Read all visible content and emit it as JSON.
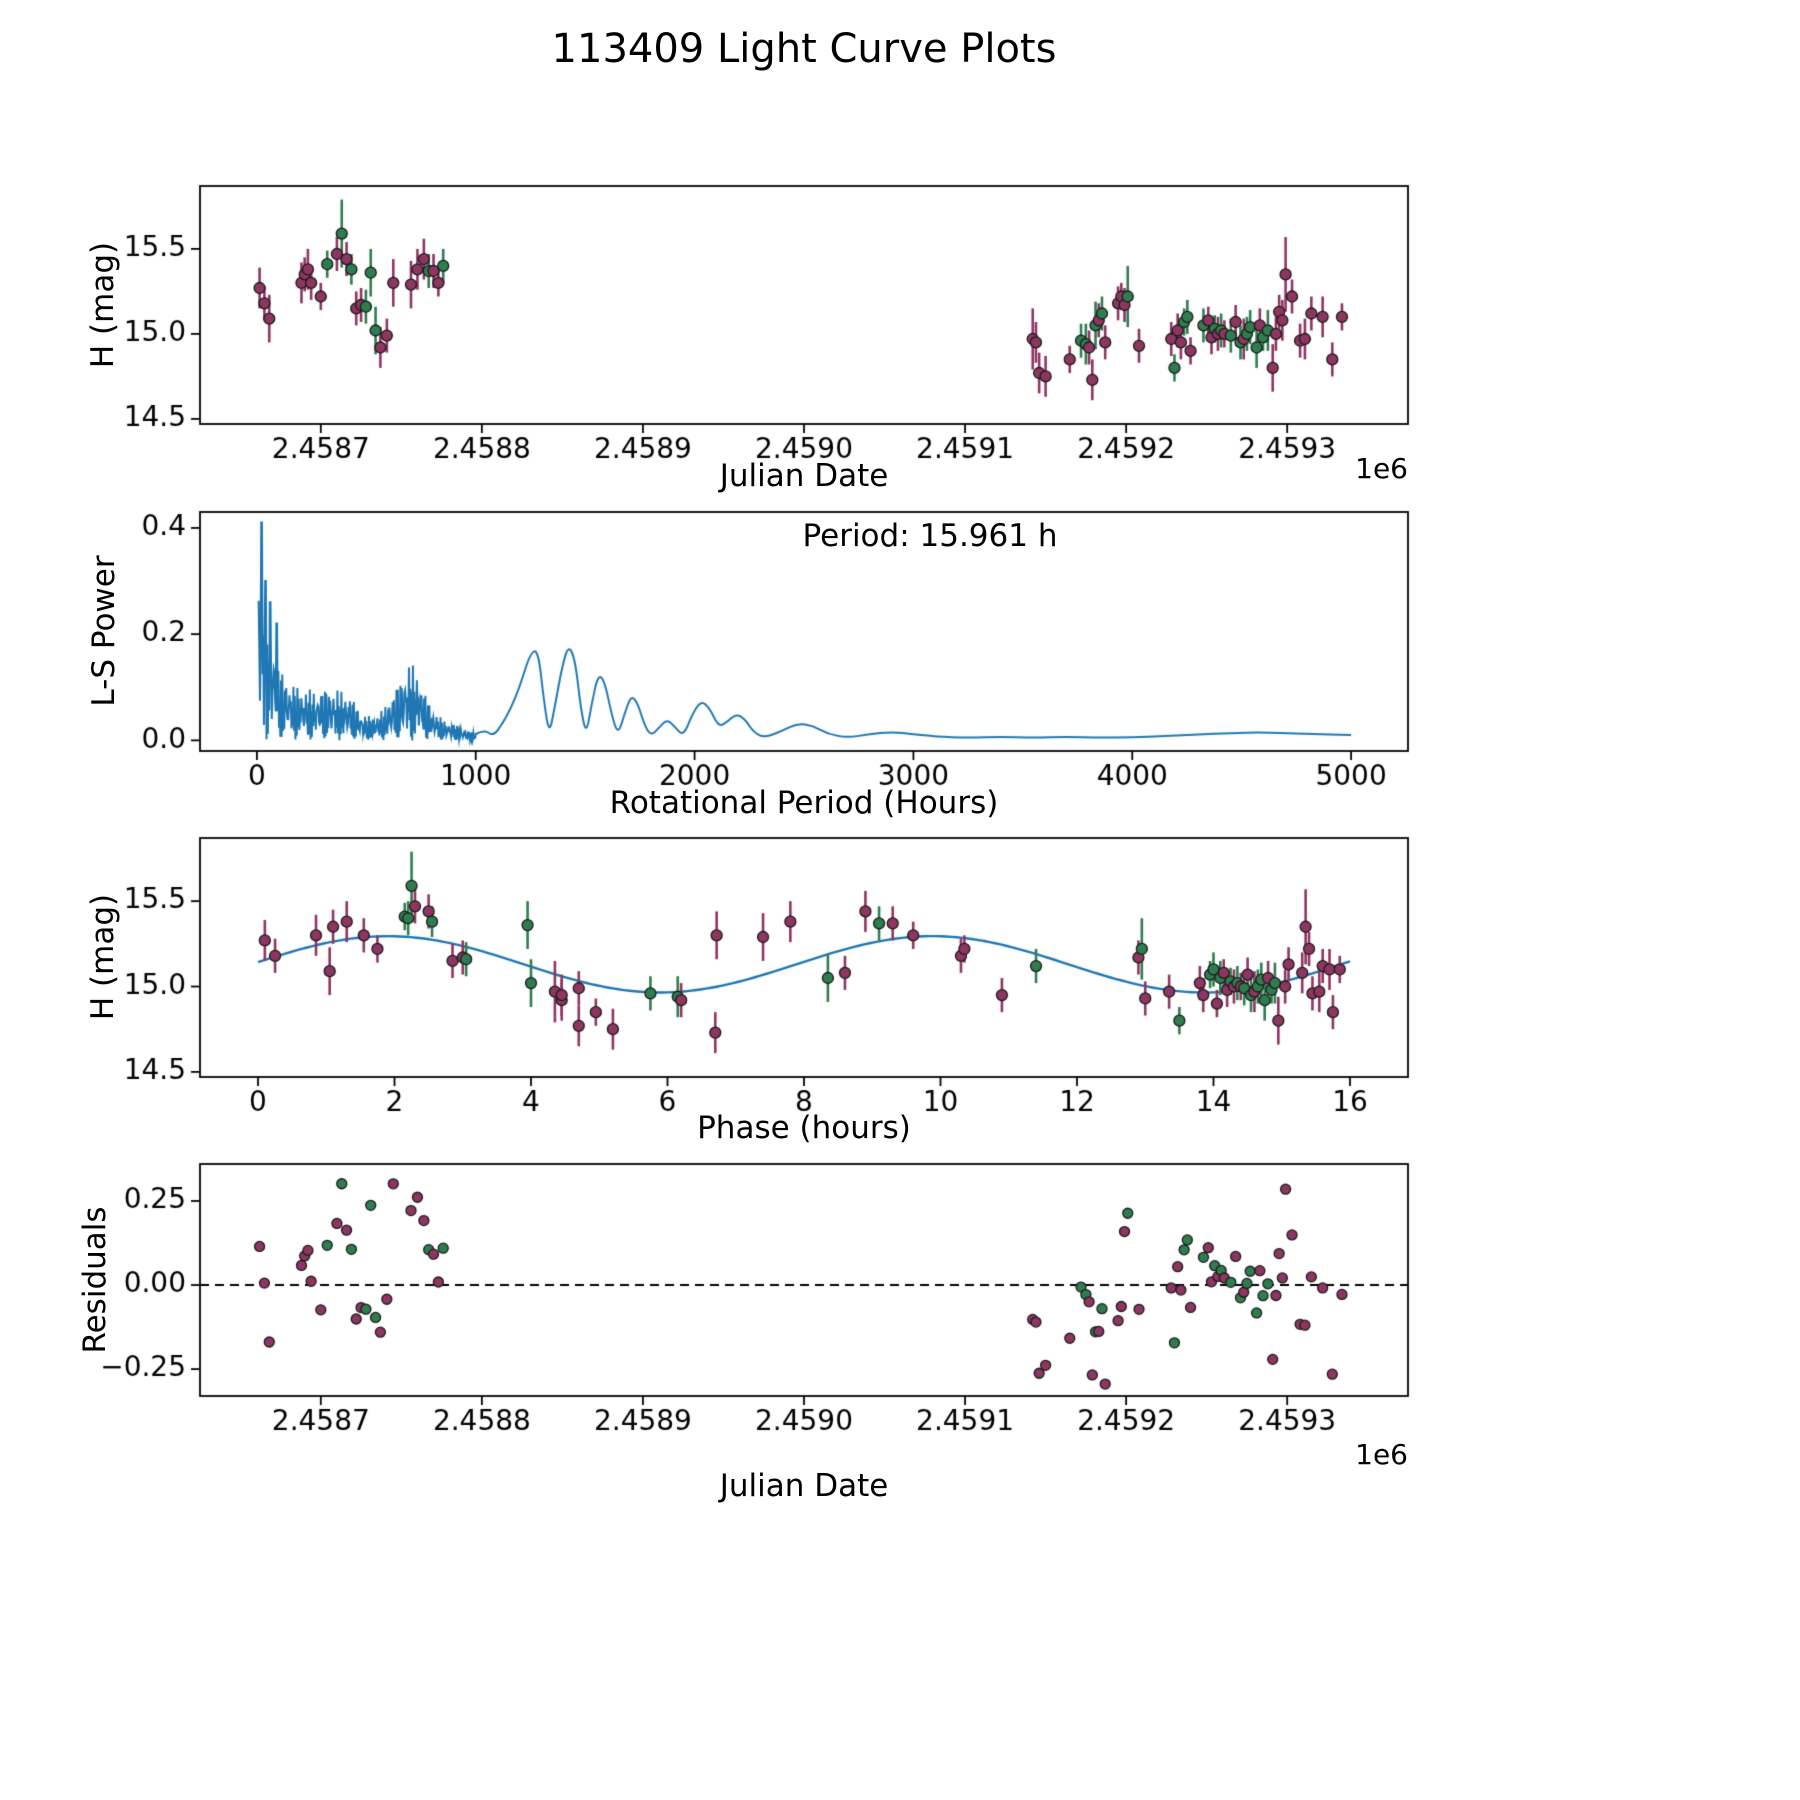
{
  "title": "113409 Light Curve Plots",
  "colors": {
    "purple": "#8e3562",
    "green": "#2e7d4e",
    "marker_edge": "#1c1c1c",
    "line_blue": "#1f77b4",
    "axis": "#000000"
  },
  "observations": [
    [
      2458662,
      0.1,
      15.27,
      0.12,
      0
    ],
    [
      2458665,
      0.25,
      15.18,
      0.1,
      0
    ],
    [
      2458668,
      1.05,
      15.09,
      0.14,
      0
    ],
    [
      2458688,
      0.85,
      15.3,
      0.12,
      0
    ],
    [
      2458690,
      1.1,
      15.35,
      0.1,
      0
    ],
    [
      2458692,
      1.3,
      15.38,
      0.12,
      0
    ],
    [
      2458694,
      1.55,
      15.3,
      0.1,
      0
    ],
    [
      2458700,
      1.75,
      15.22,
      0.08,
      0
    ],
    [
      2458704,
      2.15,
      15.41,
      0.08,
      1
    ],
    [
      2458710,
      2.3,
      15.47,
      0.1,
      0
    ],
    [
      2458713,
      2.25,
      15.59,
      0.2,
      1
    ],
    [
      2458716,
      2.5,
      15.44,
      0.1,
      0
    ],
    [
      2458719,
      2.55,
      15.38,
      0.09,
      1
    ],
    [
      2458722,
      2.85,
      15.15,
      0.1,
      0
    ],
    [
      2458725,
      3.0,
      15.17,
      0.1,
      0
    ],
    [
      2458728,
      3.05,
      15.16,
      0.1,
      1
    ],
    [
      2458731,
      3.95,
      15.36,
      0.14,
      1
    ],
    [
      2458734,
      4.0,
      15.02,
      0.14,
      1
    ],
    [
      2458737,
      4.45,
      14.92,
      0.12,
      0
    ],
    [
      2458741,
      4.7,
      14.99,
      0.1,
      0
    ],
    [
      2458745,
      6.72,
      15.3,
      0.14,
      0
    ],
    [
      2458756,
      7.4,
      15.29,
      0.14,
      0
    ],
    [
      2458760,
      7.8,
      15.38,
      0.12,
      0
    ],
    [
      2458764,
      8.9,
      15.44,
      0.12,
      0
    ],
    [
      2458767,
      9.1,
      15.37,
      0.1,
      1
    ],
    [
      2458770,
      9.3,
      15.37,
      0.1,
      0
    ],
    [
      2458773,
      9.6,
      15.3,
      0.08,
      0
    ],
    [
      2458776,
      2.2,
      15.4,
      0.1,
      1
    ],
    [
      2459142,
      4.35,
      14.97,
      0.18,
      0
    ],
    [
      2459144,
      4.45,
      14.95,
      0.12,
      0
    ],
    [
      2459146,
      4.7,
      14.77,
      0.12,
      0
    ],
    [
      2459150,
      5.2,
      14.75,
      0.12,
      0
    ],
    [
      2459165,
      4.95,
      14.85,
      0.08,
      0
    ],
    [
      2459172,
      5.75,
      14.96,
      0.1,
      1
    ],
    [
      2459175,
      6.15,
      14.94,
      0.12,
      1
    ],
    [
      2459177,
      6.2,
      14.92,
      0.1,
      0
    ],
    [
      2459179,
      6.7,
      14.73,
      0.12,
      0
    ],
    [
      2459181,
      8.35,
      15.05,
      0.14,
      1
    ],
    [
      2459183,
      8.6,
      15.08,
      0.1,
      0
    ],
    [
      2459185,
      11.4,
      15.12,
      0.1,
      1
    ],
    [
      2459187,
      10.9,
      14.95,
      0.1,
      0
    ],
    [
      2459195,
      10.3,
      15.18,
      0.1,
      0
    ],
    [
      2459197,
      10.35,
      15.22,
      0.08,
      0
    ],
    [
      2459199,
      12.9,
      15.17,
      0.1,
      0
    ],
    [
      2459201,
      12.95,
      15.22,
      0.18,
      1
    ],
    [
      2459208,
      13.0,
      14.93,
      0.1,
      0
    ],
    [
      2459228,
      13.35,
      14.97,
      0.1,
      0
    ],
    [
      2459230,
      13.5,
      14.8,
      0.08,
      1
    ],
    [
      2459232,
      13.8,
      15.02,
      0.1,
      0
    ],
    [
      2459234,
      13.85,
      14.95,
      0.1,
      0
    ],
    [
      2459236,
      13.95,
      15.07,
      0.08,
      1
    ],
    [
      2459238,
      14.0,
      15.1,
      0.1,
      1
    ],
    [
      2459240,
      14.05,
      14.9,
      0.08,
      0
    ],
    [
      2459248,
      14.1,
      15.05,
      0.1,
      1
    ],
    [
      2459251,
      14.15,
      15.08,
      0.08,
      0
    ],
    [
      2459253,
      14.2,
      14.98,
      0.1,
      0
    ],
    [
      2459255,
      14.25,
      15.03,
      0.08,
      1
    ],
    [
      2459257,
      14.3,
      15.0,
      0.1,
      0
    ],
    [
      2459259,
      14.35,
      15.02,
      0.1,
      1
    ],
    [
      2459261,
      14.4,
      15.0,
      0.08,
      0
    ],
    [
      2459265,
      14.45,
      14.99,
      0.1,
      1
    ],
    [
      2459268,
      14.5,
      15.07,
      0.1,
      0
    ],
    [
      2459271,
      14.55,
      14.95,
      0.1,
      1
    ],
    [
      2459273,
      14.6,
      14.97,
      0.12,
      0
    ],
    [
      2459275,
      14.65,
      15.0,
      0.1,
      1
    ],
    [
      2459277,
      14.7,
      15.04,
      0.1,
      1
    ],
    [
      2459281,
      14.75,
      14.92,
      0.12,
      1
    ],
    [
      2459283,
      14.8,
      15.05,
      0.1,
      0
    ],
    [
      2459285,
      14.85,
      14.98,
      0.08,
      1
    ],
    [
      2459288,
      14.9,
      15.02,
      0.12,
      1
    ],
    [
      2459291,
      14.95,
      14.8,
      0.14,
      0
    ],
    [
      2459293,
      15.05,
      15.0,
      0.1,
      0
    ],
    [
      2459295,
      15.1,
      15.13,
      0.1,
      0
    ],
    [
      2459297,
      15.3,
      15.08,
      0.12,
      0
    ],
    [
      2459299,
      15.35,
      15.35,
      0.22,
      0
    ],
    [
      2459303,
      15.4,
      15.22,
      0.1,
      0
    ],
    [
      2459308,
      15.45,
      14.96,
      0.1,
      0
    ],
    [
      2459311,
      15.55,
      14.97,
      0.12,
      0
    ],
    [
      2459315,
      15.6,
      15.12,
      0.1,
      0
    ],
    [
      2459322,
      15.7,
      15.1,
      0.12,
      0
    ],
    [
      2459328,
      15.75,
      14.85,
      0.1,
      0
    ],
    [
      2459334,
      15.85,
      15.1,
      0.08,
      0
    ]
  ],
  "chart_data": [
    {
      "type": "scatter",
      "name": "light_curve",
      "xlabel": "Julian Date",
      "ylabel": "H (mag)",
      "x_offset_label": "1e6",
      "xlim": [
        2458625,
        2459375
      ],
      "ylim": [
        14.47,
        15.87
      ],
      "xticks": [
        {
          "v": 2458700,
          "label": "2.4587"
        },
        {
          "v": 2458800,
          "label": "2.4588"
        },
        {
          "v": 2458900,
          "label": "2.4589"
        },
        {
          "v": 2459000,
          "label": "2.4590"
        },
        {
          "v": 2459100,
          "label": "2.4591"
        },
        {
          "v": 2459200,
          "label": "2.4592"
        },
        {
          "v": 2459300,
          "label": "2.4593"
        }
      ],
      "yticks": [
        {
          "v": 14.5,
          "label": "14.5"
        },
        {
          "v": 15.0,
          "label": "15.0"
        },
        {
          "v": 15.5,
          "label": "15.5"
        }
      ]
    },
    {
      "type": "line",
      "name": "periodogram",
      "xlabel": "Rotational Period (Hours)",
      "ylabel": "L-S Power",
      "annotation": "Period: 15.961 h",
      "best_period_hours": 15.961,
      "xlim": [
        -260,
        5260
      ],
      "ylim": [
        -0.02,
        0.43
      ],
      "xticks": [
        {
          "v": 0,
          "label": "0"
        },
        {
          "v": 1000,
          "label": "1000"
        },
        {
          "v": 2000,
          "label": "2000"
        },
        {
          "v": 3000,
          "label": "3000"
        },
        {
          "v": 4000,
          "label": "4000"
        },
        {
          "v": 5000,
          "label": "5000"
        }
      ],
      "yticks": [
        {
          "v": 0.0,
          "label": "0.0"
        },
        {
          "v": 0.2,
          "label": "0.2"
        },
        {
          "v": 0.4,
          "label": "0.4"
        }
      ],
      "spiky": {
        "x0": 8,
        "x1": 1000,
        "step": 3,
        "f1": 0.5,
        "f2": 0.173,
        "f2phase": 0.7,
        "floor": 0.3,
        "envelope": [
          [
            0,
            0.41
          ],
          [
            20,
            0.34
          ],
          [
            40,
            0.28
          ],
          [
            70,
            0.2
          ],
          [
            100,
            0.14
          ],
          [
            150,
            0.11
          ],
          [
            200,
            0.1
          ],
          [
            260,
            0.095
          ],
          [
            320,
            0.1
          ],
          [
            380,
            0.095
          ],
          [
            430,
            0.085
          ],
          [
            480,
            0.05
          ],
          [
            530,
            0.045
          ],
          [
            580,
            0.06
          ],
          [
            620,
            0.09
          ],
          [
            660,
            0.12
          ],
          [
            700,
            0.15
          ],
          [
            730,
            0.13
          ],
          [
            760,
            0.1
          ],
          [
            800,
            0.06
          ],
          [
            850,
            0.04
          ],
          [
            900,
            0.03
          ],
          [
            950,
            0.02
          ],
          [
            1000,
            0.015
          ]
        ],
        "forced_peaks": [
          [
            22,
            0.41
          ],
          [
            40,
            0.3
          ],
          [
            60,
            0.26
          ],
          [
            90,
            0.22
          ]
        ]
      },
      "smooth": [
        [
          1000,
          0.012
        ],
        [
          1040,
          0.02
        ],
        [
          1080,
          0.008
        ],
        [
          1120,
          0.03
        ],
        [
          1160,
          0.06
        ],
        [
          1200,
          0.1
        ],
        [
          1250,
          0.165
        ],
        [
          1285,
          0.17
        ],
        [
          1310,
          0.08
        ],
        [
          1335,
          0.01
        ],
        [
          1360,
          0.06
        ],
        [
          1395,
          0.14
        ],
        [
          1425,
          0.18
        ],
        [
          1455,
          0.15
        ],
        [
          1480,
          0.06
        ],
        [
          1505,
          0.01
        ],
        [
          1530,
          0.07
        ],
        [
          1560,
          0.125
        ],
        [
          1590,
          0.11
        ],
        [
          1620,
          0.05
        ],
        [
          1650,
          0.01
        ],
        [
          1680,
          0.05
        ],
        [
          1710,
          0.085
        ],
        [
          1740,
          0.07
        ],
        [
          1770,
          0.03
        ],
        [
          1800,
          0.008
        ],
        [
          1840,
          0.025
        ],
        [
          1875,
          0.04
        ],
        [
          1910,
          0.025
        ],
        [
          1950,
          0.008
        ],
        [
          1990,
          0.05
        ],
        [
          2030,
          0.075
        ],
        [
          2070,
          0.06
        ],
        [
          2110,
          0.025
        ],
        [
          2150,
          0.035
        ],
        [
          2190,
          0.05
        ],
        [
          2230,
          0.04
        ],
        [
          2270,
          0.015
        ],
        [
          2320,
          0.005
        ],
        [
          2400,
          0.018
        ],
        [
          2470,
          0.032
        ],
        [
          2540,
          0.028
        ],
        [
          2610,
          0.012
        ],
        [
          2700,
          0.005
        ],
        [
          2800,
          0.012
        ],
        [
          2900,
          0.016
        ],
        [
          3000,
          0.012
        ],
        [
          3100,
          0.007
        ],
        [
          3250,
          0.005
        ],
        [
          3400,
          0.007
        ],
        [
          3550,
          0.005
        ],
        [
          3700,
          0.007
        ],
        [
          3850,
          0.005
        ],
        [
          4000,
          0.006
        ],
        [
          4150,
          0.008
        ],
        [
          4300,
          0.011
        ],
        [
          4450,
          0.014
        ],
        [
          4600,
          0.015
        ],
        [
          4750,
          0.013
        ],
        [
          4900,
          0.011
        ],
        [
          5000,
          0.01
        ]
      ]
    },
    {
      "type": "scatter",
      "name": "phased_light_curve",
      "xlabel": "Phase (hours)",
      "ylabel": "H (mag)",
      "xlim": [
        -0.85,
        16.85
      ],
      "ylim": [
        14.47,
        15.87
      ],
      "xticks": [
        {
          "v": 0,
          "label": "0"
        },
        {
          "v": 2,
          "label": "2"
        },
        {
          "v": 4,
          "label": "4"
        },
        {
          "v": 6,
          "label": "6"
        },
        {
          "v": 8,
          "label": "8"
        },
        {
          "v": 10,
          "label": "10"
        },
        {
          "v": 12,
          "label": "12"
        },
        {
          "v": 14,
          "label": "14"
        },
        {
          "v": 16,
          "label": "16"
        }
      ],
      "yticks": [
        {
          "v": 14.5,
          "label": "14.5"
        },
        {
          "v": 15.0,
          "label": "15.0"
        },
        {
          "v": 15.5,
          "label": "15.5"
        }
      ],
      "fit": {
        "mean": 15.13,
        "amplitude": 0.165,
        "period": 7.9805,
        "peak_phase": 1.9,
        "x_start": 0,
        "x_end": 16
      }
    },
    {
      "type": "scatter",
      "name": "residuals",
      "xlabel": "Julian Date",
      "ylabel": "Residuals",
      "x_offset_label": "1e6",
      "xlim": [
        2458625,
        2459375
      ],
      "ylim": [
        -0.33,
        0.36
      ],
      "xticks": [
        {
          "v": 2458700,
          "label": "2.4587"
        },
        {
          "v": 2458800,
          "label": "2.4588"
        },
        {
          "v": 2458900,
          "label": "2.4589"
        },
        {
          "v": 2459000,
          "label": "2.4590"
        },
        {
          "v": 2459100,
          "label": "2.4591"
        },
        {
          "v": 2459200,
          "label": "2.4592"
        },
        {
          "v": 2459300,
          "label": "2.4593"
        }
      ],
      "yticks": [
        {
          "v": 0.25,
          "label": "0.25"
        },
        {
          "v": 0.0,
          "label": "0.00"
        },
        {
          "v": -0.25,
          "label": "−0.25"
        }
      ],
      "zero_line": true
    }
  ]
}
